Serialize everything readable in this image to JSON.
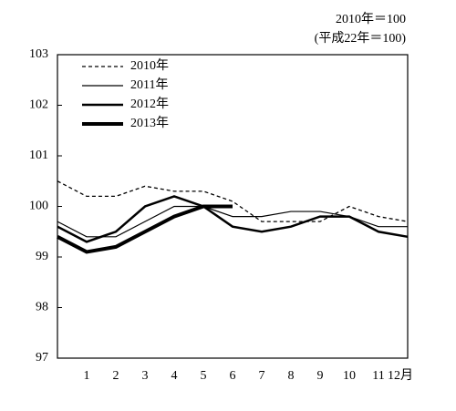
{
  "chart_data": {
    "type": "line",
    "annotations": [
      "2010年＝100",
      "(平成22年＝100)"
    ],
    "categories": [
      null,
      "1",
      "2",
      "3",
      "4",
      "5",
      "6",
      "7",
      "8",
      "9",
      "10",
      "11",
      "12月"
    ],
    "series": [
      {
        "name": "2010年",
        "color": "#000000",
        "style": "dashed",
        "width": 1.3,
        "values": [
          100.5,
          100.2,
          100.2,
          100.4,
          100.3,
          100.3,
          100.1,
          99.7,
          99.7,
          99.7,
          100.0,
          99.8,
          99.7
        ]
      },
      {
        "name": "2011年",
        "color": "#000000",
        "style": "solid",
        "width": 1.2,
        "values": [
          99.7,
          99.4,
          99.4,
          99.7,
          100.0,
          100.0,
          99.8,
          99.8,
          99.9,
          99.9,
          99.8,
          99.6,
          99.6
        ]
      },
      {
        "name": "2012年",
        "color": "#000000",
        "style": "solid",
        "width": 2.5,
        "values": [
          99.6,
          99.3,
          99.5,
          100.0,
          100.2,
          100.0,
          99.6,
          99.5,
          99.6,
          99.8,
          99.8,
          99.5,
          99.4
        ]
      },
      {
        "name": "2013年",
        "color": "#000000",
        "style": "solid",
        "width": 4,
        "values": [
          99.4,
          99.1,
          99.2,
          99.5,
          99.8,
          100.0,
          100.0,
          null,
          null,
          null,
          null,
          null,
          null
        ]
      }
    ],
    "ylim": [
      97,
      103
    ],
    "yticks": [
      97,
      98,
      99,
      100,
      101,
      102,
      103
    ],
    "grid": false
  }
}
